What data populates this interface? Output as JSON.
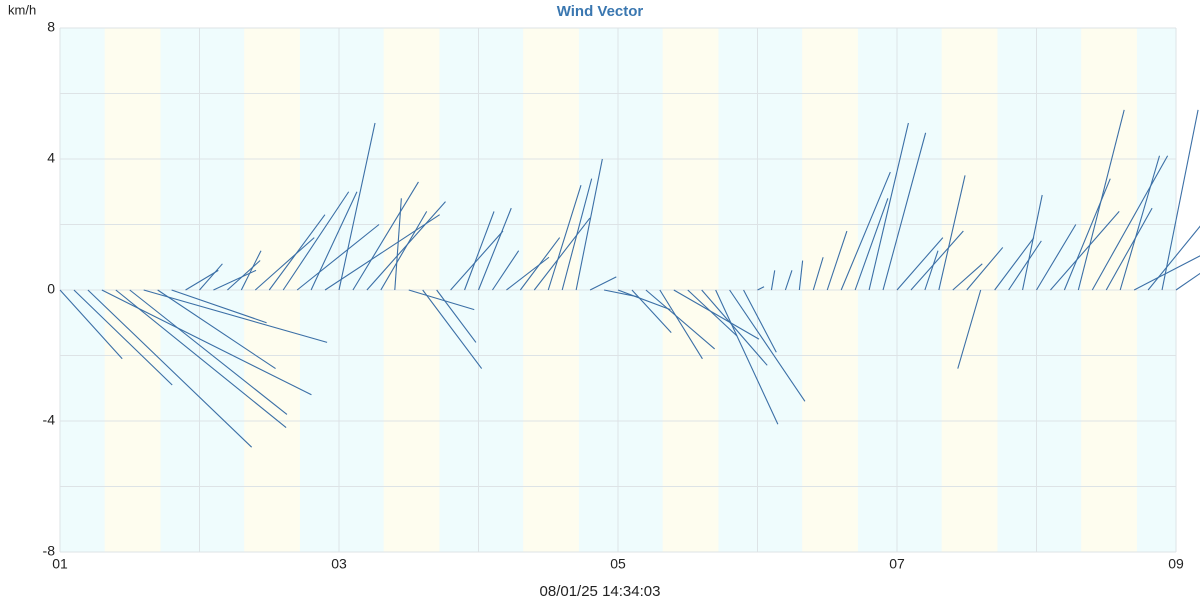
{
  "chart_data": {
    "type": "vector",
    "title": "Wind Vector",
    "ylabel": "km/h",
    "footer": "08/01/25 14:34:03",
    "xlim": [
      1,
      9
    ],
    "xticks": [
      {
        "value": 1,
        "label": "01"
      },
      {
        "value": 3,
        "label": "03"
      },
      {
        "value": 5,
        "label": "05"
      },
      {
        "value": 7,
        "label": "07"
      },
      {
        "value": 9,
        "label": "09"
      }
    ],
    "x_minor_ticks": [
      2,
      4,
      6,
      8
    ],
    "ylim": [
      -8,
      8
    ],
    "yticks": [
      -8,
      -4,
      0,
      4,
      8
    ],
    "y_minor_ticks": [
      -6,
      -2,
      2,
      6
    ],
    "grid": true,
    "shading": [
      [
        1.32,
        1.72
      ],
      [
        2.32,
        2.72
      ],
      [
        3.32,
        3.72
      ],
      [
        4.32,
        4.72
      ],
      [
        5.32,
        5.72
      ],
      [
        6.32,
        6.72
      ],
      [
        7.32,
        7.72
      ],
      [
        8.32,
        8.72
      ]
    ],
    "series": [
      {
        "color": "#3b6fa6",
        "x": [
          1.0,
          1.1,
          1.2,
          1.3,
          1.4,
          1.5,
          1.6,
          1.7,
          1.8,
          1.9,
          2.0,
          2.1,
          2.2,
          2.3,
          2.4,
          2.5,
          2.6,
          2.7,
          2.8,
          2.9,
          3.0,
          3.1,
          3.2,
          3.3,
          3.4,
          3.5,
          3.6,
          3.7,
          3.8,
          3.9,
          4.0,
          4.1,
          4.2,
          4.3,
          4.4,
          4.5,
          4.6,
          4.7,
          4.8,
          4.9,
          5.0,
          5.1,
          5.2,
          5.3,
          5.4,
          5.5,
          5.6,
          5.7,
          5.8,
          5.9,
          6.0,
          6.1,
          6.2,
          6.3,
          6.4,
          6.5,
          6.6,
          6.7,
          6.8,
          6.9,
          7.0,
          7.1,
          7.2,
          7.3,
          7.4,
          7.5,
          7.6,
          7.7,
          7.8,
          7.9,
          8.0,
          8.1,
          8.2,
          8.3,
          8.4,
          8.5,
          8.6,
          8.7,
          8.8,
          8.9,
          9.0
        ],
        "u": [
          1.9,
          3.0,
          5.0,
          6.4,
          5.2,
          4.8,
          5.6,
          3.6,
          2.9,
          1.0,
          0.7,
          1.3,
          1.0,
          0.6,
          1.8,
          1.7,
          2.0,
          2.5,
          1.4,
          3.5,
          1.1,
          2.0,
          2.4,
          1.4,
          0.2,
          2.0,
          1.8,
          1.2,
          1.6,
          0.9,
          1.0,
          0.8,
          1.3,
          1.2,
          1.7,
          1.0,
          0.9,
          0.8,
          0.8,
          1.0,
          1.6,
          1.2,
          2.1,
          1.3,
          2.6,
          1.5,
          2.0,
          1.9,
          2.3,
          1.0,
          0.2,
          0.1,
          0.2,
          0.1,
          0.3,
          0.6,
          1.5,
          1.0,
          1.2,
          1.3,
          1.4,
          1.6,
          0.4,
          0.8,
          0.9,
          1.1,
          -0.7,
          1.2,
          1.0,
          0.6,
          1.2,
          2.1,
          1.4,
          1.4,
          2.3,
          1.4,
          1.2,
          2.7,
          3.1,
          1.1,
          1.6
        ],
        "v": [
          -2.1,
          -2.9,
          -4.8,
          -3.2,
          -4.2,
          -3.8,
          -1.6,
          -2.4,
          -1.0,
          0.6,
          0.8,
          0.6,
          0.9,
          1.2,
          1.6,
          2.3,
          3.0,
          2.0,
          3.0,
          2.3,
          5.1,
          3.3,
          2.7,
          2.4,
          2.8,
          -0.6,
          -2.4,
          -1.6,
          1.8,
          2.4,
          2.5,
          1.2,
          1.0,
          1.6,
          2.2,
          3.2,
          3.4,
          4.0,
          0.4,
          -0.2,
          -0.6,
          -1.3,
          -1.8,
          -2.1,
          -1.5,
          -1.4,
          -2.3,
          -4.1,
          -3.4,
          -1.9,
          0.1,
          0.6,
          0.6,
          0.9,
          1.0,
          1.8,
          3.6,
          2.8,
          5.1,
          4.8,
          1.6,
          1.8,
          1.2,
          3.5,
          0.8,
          1.3,
          -2.4,
          1.6,
          1.5,
          2.9,
          2.0,
          2.4,
          3.4,
          5.5,
          4.1,
          2.5,
          4.1,
          1.4,
          3.8,
          5.5,
          1.1
        ]
      }
    ]
  }
}
